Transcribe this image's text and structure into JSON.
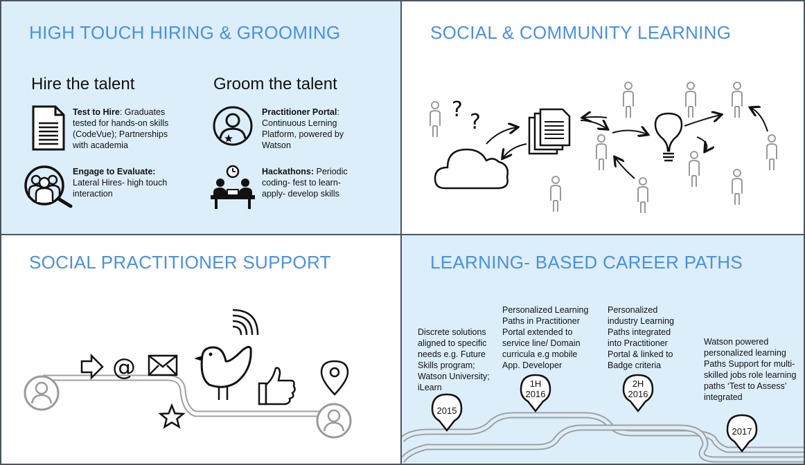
{
  "sections": {
    "hiring": {
      "title": "HIGH TOUCH HIRING & GROOMING",
      "hire_heading": "Hire the talent",
      "groom_heading": "Groom the talent",
      "items": [
        {
          "bold": "Test to Hire",
          "text": ": Graduates tested for hands-on skills (CodeVue); Partnerships with academia",
          "icon": "document-icon"
        },
        {
          "bold": "Engage to Evaluate:",
          "text": " Lateral Hires- high touch interaction",
          "icon": "group-magnifier-icon"
        },
        {
          "bold": "Practitioner Portal",
          "text": ": Continuous Lerning Platform, powered by Watson",
          "icon": "user-star-icon"
        },
        {
          "bold": "Hackathons:",
          "text": " Periodic coding- fest to learn- apply- develop skills",
          "icon": "coders-at-desk-icon"
        }
      ]
    },
    "community": {
      "title": "SOCIAL & COMMUNITY LEARNING"
    },
    "support": {
      "title": "SOCIAL PRACTITIONER SUPPORT"
    },
    "career": {
      "title": "LEARNING- BASED CAREER PATHS",
      "milestones": [
        {
          "label": "2015",
          "text": "Discrete solutions aligned to specific needs e.g. Future Skills program; Watson University; iLearn"
        },
        {
          "label": "1H 2016",
          "text": "Personalized Learning Paths in Practitioner Portal extended to service line/ Domain curricula e.g mobile App. Developer"
        },
        {
          "label": "2H 2016",
          "text": "Personalized industry Learning Paths integrated into Practitioner Portal & linked to Badge criteria"
        },
        {
          "label": "2017",
          "text": "Watson powered personalized learning Paths Support for multi-skilled jobs role learning paths ‘Test to Assess’ integrated"
        }
      ]
    }
  },
  "colors": {
    "heading": "#4a90e2",
    "panel_blue": "#dceefa",
    "border": "#4a5560",
    "person_gray": "#9a9a9a"
  }
}
